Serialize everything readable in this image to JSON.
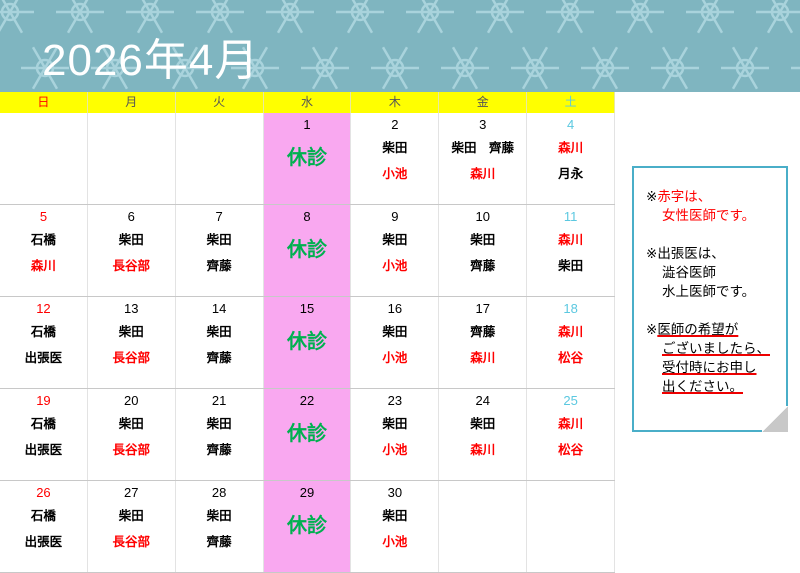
{
  "title": "2026年4月",
  "colors": {
    "banner": "#7fb5c0",
    "header": "#ffff00",
    "closed_bg": "#f9a8f0",
    "closed_text": "#00b050",
    "female": "#ff0000",
    "sunday": "#ff0000",
    "saturday": "#5bc8e0"
  },
  "weekdays": [
    "日",
    "月",
    "火",
    "水",
    "木",
    "金",
    "土"
  ],
  "closed_label": "休診",
  "weeks": [
    [
      {
        "date": "",
        "lines": []
      },
      {
        "date": "",
        "lines": []
      },
      {
        "date": "",
        "lines": []
      },
      {
        "date": "1",
        "closed": true,
        "lines": []
      },
      {
        "date": "2",
        "lines": [
          {
            "t": "柴田",
            "c": "k"
          },
          {
            "t": "小池",
            "c": "r"
          }
        ]
      },
      {
        "date": "3",
        "lines": [
          {
            "t": "柴田　齊藤",
            "c": "k"
          },
          {
            "t": "森川",
            "c": "r"
          }
        ]
      },
      {
        "date": "4",
        "lines": [
          {
            "t": "森川",
            "c": "r"
          },
          {
            "t": "月永",
            "c": "k"
          }
        ]
      }
    ],
    [
      {
        "date": "5",
        "lines": [
          {
            "t": "石橋",
            "c": "k"
          },
          {
            "t": "森川",
            "c": "r"
          }
        ]
      },
      {
        "date": "6",
        "lines": [
          {
            "t": "柴田",
            "c": "k"
          },
          {
            "t": "長谷部",
            "c": "r"
          }
        ]
      },
      {
        "date": "7",
        "lines": [
          {
            "t": "柴田",
            "c": "k"
          },
          {
            "t": "齊藤",
            "c": "k"
          }
        ]
      },
      {
        "date": "8",
        "closed": true,
        "lines": []
      },
      {
        "date": "9",
        "lines": [
          {
            "t": "柴田",
            "c": "k"
          },
          {
            "t": "小池",
            "c": "r"
          }
        ]
      },
      {
        "date": "10",
        "lines": [
          {
            "t": "柴田",
            "c": "k"
          },
          {
            "t": "齊藤",
            "c": "k"
          }
        ]
      },
      {
        "date": "11",
        "lines": [
          {
            "t": "森川",
            "c": "r"
          },
          {
            "t": "柴田",
            "c": "k"
          }
        ]
      }
    ],
    [
      {
        "date": "12",
        "lines": [
          {
            "t": "石橋",
            "c": "k"
          },
          {
            "t": "出張医",
            "c": "k"
          }
        ]
      },
      {
        "date": "13",
        "lines": [
          {
            "t": "柴田",
            "c": "k"
          },
          {
            "t": "長谷部",
            "c": "r"
          }
        ]
      },
      {
        "date": "14",
        "lines": [
          {
            "t": "柴田",
            "c": "k"
          },
          {
            "t": "齊藤",
            "c": "k"
          }
        ]
      },
      {
        "date": "15",
        "closed": true,
        "lines": []
      },
      {
        "date": "16",
        "lines": [
          {
            "t": "柴田",
            "c": "k"
          },
          {
            "t": "小池",
            "c": "r"
          }
        ]
      },
      {
        "date": "17",
        "lines": [
          {
            "t": "齊藤",
            "c": "k"
          },
          {
            "t": "森川",
            "c": "r"
          }
        ]
      },
      {
        "date": "18",
        "lines": [
          {
            "t": "森川",
            "c": "r"
          },
          {
            "t": "松谷",
            "c": "r"
          }
        ]
      }
    ],
    [
      {
        "date": "19",
        "lines": [
          {
            "t": "石橋",
            "c": "k"
          },
          {
            "t": "出張医",
            "c": "k"
          }
        ]
      },
      {
        "date": "20",
        "lines": [
          {
            "t": "柴田",
            "c": "k"
          },
          {
            "t": "長谷部",
            "c": "r"
          }
        ]
      },
      {
        "date": "21",
        "lines": [
          {
            "t": "柴田",
            "c": "k"
          },
          {
            "t": "齊藤",
            "c": "k"
          }
        ]
      },
      {
        "date": "22",
        "closed": true,
        "lines": []
      },
      {
        "date": "23",
        "lines": [
          {
            "t": "柴田",
            "c": "k"
          },
          {
            "t": "小池",
            "c": "r"
          }
        ]
      },
      {
        "date": "24",
        "lines": [
          {
            "t": "柴田",
            "c": "k"
          },
          {
            "t": "森川",
            "c": "r"
          }
        ]
      },
      {
        "date": "25",
        "lines": [
          {
            "t": "森川",
            "c": "r"
          },
          {
            "t": "松谷",
            "c": "r"
          }
        ]
      }
    ],
    [
      {
        "date": "26",
        "lines": [
          {
            "t": "石橋",
            "c": "k"
          },
          {
            "t": "出張医",
            "c": "k"
          }
        ]
      },
      {
        "date": "27",
        "lines": [
          {
            "t": "柴田",
            "c": "k"
          },
          {
            "t": "長谷部",
            "c": "r"
          }
        ]
      },
      {
        "date": "28",
        "lines": [
          {
            "t": "柴田",
            "c": "k"
          },
          {
            "t": "齊藤",
            "c": "k"
          }
        ]
      },
      {
        "date": "29",
        "closed": true,
        "lines": []
      },
      {
        "date": "30",
        "lines": [
          {
            "t": "柴田",
            "c": "k"
          },
          {
            "t": "小池",
            "c": "r"
          }
        ]
      },
      {
        "date": "",
        "lines": []
      },
      {
        "date": "",
        "lines": []
      }
    ]
  ],
  "note": {
    "mark": "※",
    "red1": "赤字は、",
    "red2": "女性医師です。",
    "b1": "出張医は、",
    "b2": "澁谷医師",
    "b3": "水上医師です。",
    "u1": "医師の希望が",
    "u2": "ございましたら、",
    "u3": "受付時にお申し",
    "u4": "出ください。"
  }
}
